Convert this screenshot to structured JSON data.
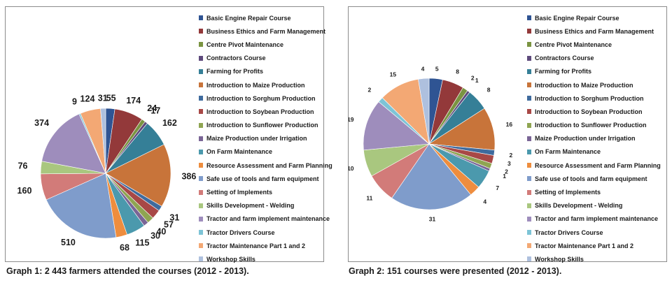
{
  "legend_categories": [
    "Basic Engine Repair Course",
    "Business Ethics and Farm Management",
    "Centre Pivot Maintenance",
    "Contractors Course",
    "Farming for Profits",
    "Introduction to Maize Production",
    "Introduction to Sorghum Production",
    "Introduction to Soybean Production",
    "Introduction to Sunflower Production",
    "Maize Production under Irrigation",
    "On Farm Maintenance",
    "Resource Assessment and Farm Planning",
    "Safe use of tools and farm equipment",
    "Setting of Implements",
    "Skills Development - Welding",
    "Tractor and farm implement maintenance",
    "Tractor Drivers Course",
    "Tractor Maintenance Part 1 and 2",
    "Workshop Skills"
  ],
  "colors": [
    "#2f5493",
    "#93393a",
    "#7a9441",
    "#5e4a7c",
    "#357f97",
    "#c8743a",
    "#3f6b9e",
    "#a84846",
    "#8fa552",
    "#7a6596",
    "#4b99ad",
    "#ee8d3e",
    "#7f9ccb",
    "#d27b79",
    "#a9c77f",
    "#9e8dbc",
    "#7dc4d6",
    "#f3a874",
    "#aec0de"
  ],
  "chart_data": [
    {
      "type": "pie",
      "caption": "Graph 1: 2 443 farmers attended the courses (2012 - 2013).",
      "values": [
        55,
        174,
        24,
        17,
        162,
        386,
        31,
        57,
        40,
        30,
        115,
        68,
        510,
        160,
        76,
        374,
        9,
        124,
        31
      ]
    },
    {
      "type": "pie",
      "caption": "Graph 2: 151 courses were presented (2012 - 2013).",
      "values": [
        5,
        8,
        2,
        1,
        8,
        16,
        2,
        3,
        2,
        1,
        7,
        4,
        31,
        11,
        10,
        19,
        2,
        15,
        4
      ]
    }
  ]
}
